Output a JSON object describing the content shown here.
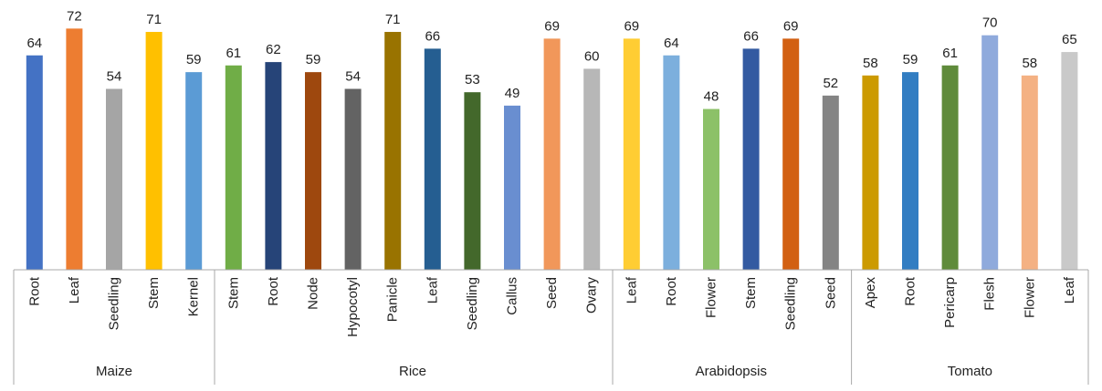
{
  "chart_data": {
    "type": "bar",
    "title": "",
    "xlabel": "",
    "ylabel": "",
    "ylim": [
      0,
      74
    ],
    "grid": false,
    "legend": "none",
    "groups": [
      {
        "name": "Maize",
        "bars": [
          {
            "label": "Root",
            "value": 64,
            "color": "#4472C4"
          },
          {
            "label": "Leaf",
            "value": 72,
            "color": "#ED7D31"
          },
          {
            "label": "Seedling",
            "value": 54,
            "color": "#A5A5A5"
          },
          {
            "label": "Stem",
            "value": 71,
            "color": "#FFC000"
          },
          {
            "label": "Kernel",
            "value": 59,
            "color": "#5B9BD5"
          }
        ]
      },
      {
        "name": "Rice",
        "bars": [
          {
            "label": "Stem",
            "value": 61,
            "color": "#70AD47"
          },
          {
            "label": "Root",
            "value": 62,
            "color": "#264478"
          },
          {
            "label": "Node",
            "value": 59,
            "color": "#9E480E"
          },
          {
            "label": "Hypocotyl",
            "value": 54,
            "color": "#636363"
          },
          {
            "label": "Panicle",
            "value": 71,
            "color": "#997300"
          },
          {
            "label": "Leaf",
            "value": 66,
            "color": "#255E91"
          },
          {
            "label": "Seedling",
            "value": 53,
            "color": "#43682B"
          },
          {
            "label": "Callus",
            "value": 49,
            "color": "#698ED0"
          },
          {
            "label": "Seed",
            "value": 69,
            "color": "#F1975A"
          },
          {
            "label": "Ovary",
            "value": 60,
            "color": "#B7B7B7"
          }
        ]
      },
      {
        "name": "Arabidopsis",
        "bars": [
          {
            "label": "Leaf",
            "value": 69,
            "color": "#FFCD33"
          },
          {
            "label": "Root",
            "value": 64,
            "color": "#7CAFDD"
          },
          {
            "label": "Flower",
            "value": 48,
            "color": "#8CC168"
          },
          {
            "label": "Stem",
            "value": 66,
            "color": "#335AA1"
          },
          {
            "label": "Seedling",
            "value": 69,
            "color": "#D26012"
          },
          {
            "label": "Seed",
            "value": 52,
            "color": "#848484"
          }
        ]
      },
      {
        "name": "Tomato",
        "bars": [
          {
            "label": "Apex",
            "value": 58,
            "color": "#CC9A00"
          },
          {
            "label": "Root",
            "value": 59,
            "color": "#327DC2"
          },
          {
            "label": "Pericarp",
            "value": 61,
            "color": "#5F8B3B"
          },
          {
            "label": "Flesh",
            "value": 70,
            "color": "#8FAADC"
          },
          {
            "label": "Flower",
            "value": 58,
            "color": "#F4B183"
          },
          {
            "label": "Leaf",
            "value": 65,
            "color": "#C9C9C9"
          }
        ]
      }
    ]
  }
}
